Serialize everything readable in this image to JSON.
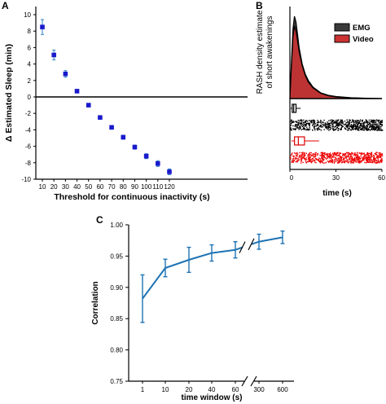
{
  "panels": {
    "A": {
      "label": "A"
    },
    "B": {
      "label": "B"
    },
    "C": {
      "label": "C"
    }
  },
  "chart_data": [
    {
      "id": "A",
      "type": "scatter",
      "xlabel": "Threshold for continuous inactivity (s)",
      "ylabel": "Δ Estimated Sleep (min)",
      "x": [
        10,
        20,
        30,
        40,
        50,
        60,
        70,
        80,
        90,
        100,
        110,
        120
      ],
      "y": [
        8.5,
        5.1,
        2.8,
        0.7,
        -1.0,
        -2.5,
        -3.7,
        -4.9,
        -6.1,
        -7.2,
        -8.1,
        -9.1
      ],
      "yerr": [
        0.9,
        0.6,
        0.4,
        0.2,
        0.15,
        0.2,
        0.2,
        0.25,
        0.25,
        0.3,
        0.35,
        0.35
      ],
      "xticks": [
        10,
        20,
        30,
        40,
        50,
        60,
        70,
        80,
        90,
        100,
        110,
        120
      ],
      "yticks": [
        10,
        8,
        6,
        4,
        2,
        0,
        -2,
        -4,
        -6,
        -8,
        -10
      ],
      "ylim": [
        -10,
        10
      ],
      "reference_line": 0,
      "marker_color": "#1a1acc",
      "error_color": "#2a7fc0"
    },
    {
      "id": "B",
      "type": "area",
      "ylabel_lines": [
        "RASH density estimate",
        "of short awakenings"
      ],
      "xlabel": "time (s)",
      "xticks": [
        0,
        30,
        60
      ],
      "xlim": [
        0,
        60
      ],
      "series": [
        {
          "name": "EMG",
          "color": "#3a3a3a",
          "x": [
            0,
            1,
            2,
            3,
            4,
            5,
            6,
            8,
            10,
            12,
            15,
            20,
            25,
            30,
            40,
            50,
            60
          ],
          "density": [
            0.0,
            0.45,
            0.85,
            1.0,
            0.93,
            0.78,
            0.62,
            0.42,
            0.3,
            0.22,
            0.14,
            0.07,
            0.04,
            0.025,
            0.01,
            0.004,
            0.0
          ]
        },
        {
          "name": "Video",
          "color": "#cc3333",
          "x": [
            0,
            1,
            2,
            3,
            4,
            5,
            6,
            8,
            10,
            12,
            15,
            20,
            25,
            30,
            40,
            50,
            60
          ],
          "density": [
            0.0,
            0.4,
            0.75,
            0.88,
            0.82,
            0.7,
            0.57,
            0.4,
            0.28,
            0.2,
            0.13,
            0.065,
            0.035,
            0.02,
            0.008,
            0.003,
            0.0
          ]
        }
      ],
      "boxplots": [
        {
          "series": "EMG",
          "color": "#000000",
          "q1": 1.5,
          "median": 2.5,
          "q3": 4.0,
          "whisker_low": 0.5,
          "whisker_high": 7.0
        },
        {
          "series": "Video",
          "color": "#dd0000",
          "q1": 3.0,
          "median": 5.5,
          "q3": 9.5,
          "whisker_low": 1.0,
          "whisker_high": 19.0
        }
      ],
      "strips": [
        {
          "series": "EMG",
          "color": "#000000",
          "x_min": 0,
          "x_max": 60
        },
        {
          "series": "Video",
          "color": "#ee0000",
          "x_min": 0,
          "x_max": 60
        }
      ],
      "legend": "top-right"
    },
    {
      "id": "C",
      "type": "line",
      "xlabel": "time window (s)",
      "ylabel": "Correlation",
      "categories": [
        "1",
        "10",
        "20",
        "40",
        "60",
        "300",
        "600"
      ],
      "values": [
        0.882,
        0.931,
        0.944,
        0.955,
        0.96,
        0.973,
        0.98
      ],
      "err": [
        0.038,
        0.014,
        0.02,
        0.013,
        0.013,
        0.012,
        0.01
      ],
      "ylim": [
        0.75,
        1.0
      ],
      "yticks": [
        "1.00",
        "0.95",
        "0.90",
        "0.85",
        "0.80",
        "0.75"
      ],
      "axis_break": "between 60 and 300",
      "line_color": "#1e73b4"
    }
  ]
}
